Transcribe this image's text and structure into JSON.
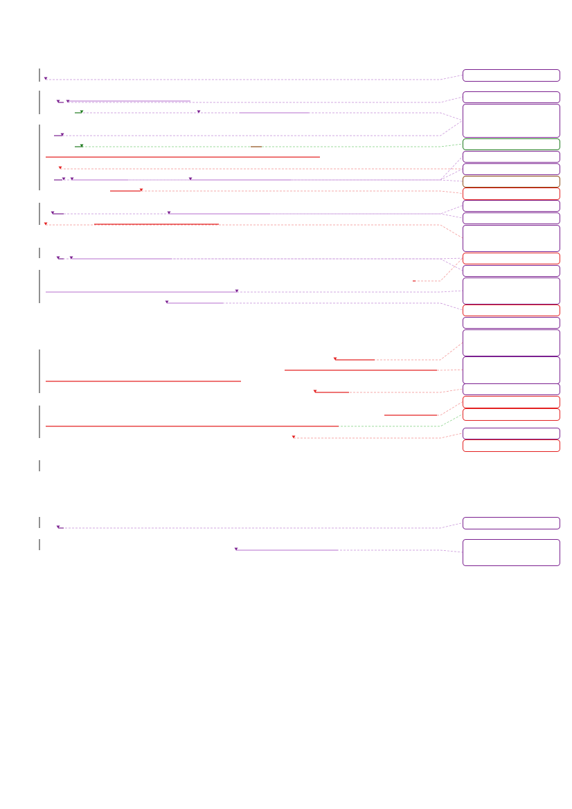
{
  "document": {
    "body_text": "",
    "colors": {
      "purple": "#7a1f8f",
      "purple_light": "#c48bd6",
      "green": "#1e7a1e",
      "green_light": "#7fcf7f",
      "red": "#e32020",
      "red_light": "#f28c8c",
      "brown": "#8b4a13",
      "leader": "#b0b0b0",
      "margin_bar": "#222222"
    }
  },
  "comments": [
    {
      "color": "purple"
    },
    {
      "color": "purple"
    },
    {
      "color": "purple"
    },
    {
      "color": "green"
    },
    {
      "color": "purple"
    },
    {
      "color": "purple"
    },
    {
      "color": "brown"
    },
    {
      "color": "red"
    },
    {
      "color": "purple"
    },
    {
      "color": "purple"
    },
    {
      "color": "purple"
    },
    {
      "color": "red"
    },
    {
      "color": "purple"
    },
    {
      "color": "purple"
    },
    {
      "color": "red"
    },
    {
      "color": "purple"
    },
    {
      "color": "purple"
    },
    {
      "color": "purple"
    },
    {
      "color": "purple"
    },
    {
      "color": "red"
    },
    {
      "color": "red"
    },
    {
      "color": "purple"
    },
    {
      "color": "red"
    },
    {
      "color": "purple"
    },
    {
      "color": "purple"
    }
  ]
}
